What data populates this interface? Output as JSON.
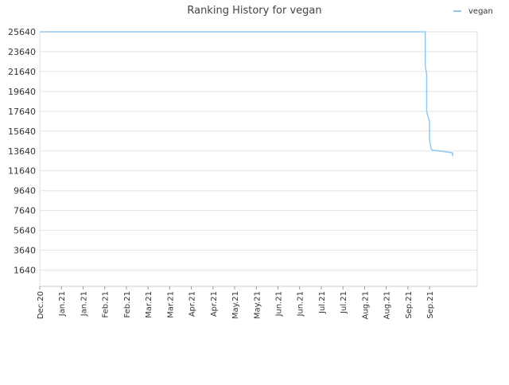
{
  "chart_data": {
    "type": "line",
    "title": "Ranking History for vegan",
    "xlabel": "",
    "ylabel": "",
    "y_axis": {
      "reversed": true,
      "ylim": [
        25640,
        0
      ],
      "ticks": [
        1640,
        3640,
        5640,
        7640,
        9640,
        11640,
        13640,
        15640,
        17640,
        19640,
        21640,
        23640,
        25640
      ]
    },
    "x_axis": {
      "range": [
        "2020-12-01",
        "2021-09-30"
      ],
      "tick_labels": [
        "Dec.20",
        "Jan.21",
        "Jan.21",
        "Feb.21",
        "Feb.21",
        "Mar.21",
        "Mar.21",
        "Apr.21",
        "Apr.21",
        "May.21",
        "May.21",
        "Jun.21",
        "Jun.21",
        "Jul.21",
        "Jul.21",
        "Aug.21",
        "Aug.21",
        "Sep.21",
        "Sep.21"
      ],
      "tick_dates": [
        "2020-12-01",
        "2020-12-16",
        "2020-12-31",
        "2021-01-15",
        "2021-01-30",
        "2021-02-14",
        "2021-03-01",
        "2021-03-16",
        "2021-03-31",
        "2021-04-15",
        "2021-04-30",
        "2021-05-15",
        "2021-05-30",
        "2021-06-14",
        "2021-06-29",
        "2021-07-14",
        "2021-07-29",
        "2021-08-13",
        "2021-08-28"
      ]
    },
    "grid": true,
    "legend": {
      "position": "top-right",
      "entries": [
        "vegan"
      ]
    },
    "series": [
      {
        "name": "vegan",
        "color": "#90c8f0",
        "points": [
          [
            "2020-12-01",
            25640
          ],
          [
            "2021-08-25",
            25640
          ],
          [
            "2021-08-25",
            22300
          ],
          [
            "2021-08-26",
            21300
          ],
          [
            "2021-08-26",
            17600
          ],
          [
            "2021-08-28",
            16600
          ],
          [
            "2021-08-28",
            14800
          ],
          [
            "2021-08-29",
            13900
          ],
          [
            "2021-08-30",
            13700
          ],
          [
            "2021-09-04",
            13650
          ],
          [
            "2021-09-08",
            13550
          ],
          [
            "2021-09-13",
            13450
          ],
          [
            "2021-09-13",
            13100
          ]
        ]
      }
    ]
  }
}
